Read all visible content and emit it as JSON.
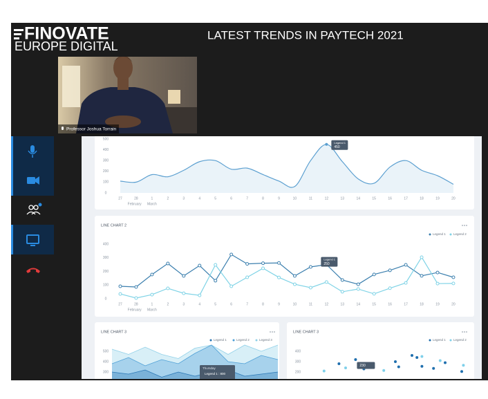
{
  "header": {
    "logo_line1": "FINOVATE",
    "logo_line2": "EUROPE DIGITAL",
    "title": "LATEST TRENDS IN PAYTECH 2021"
  },
  "video": {
    "caption": "Professor Joshua Torrain"
  },
  "dashboard": {
    "days": [
      "27",
      "28",
      "1",
      "2",
      "3",
      "4",
      "5",
      "6",
      "7",
      "8",
      "9",
      "10",
      "11",
      "12",
      "13",
      "14",
      "15",
      "16",
      "17",
      "18",
      "19",
      "20"
    ],
    "months": [
      "February",
      "March"
    ],
    "chart1": {
      "type": "area",
      "color": "#5b9fd0",
      "ylim": [
        0,
        500
      ],
      "yticks": [
        0,
        100,
        200,
        300,
        400,
        500
      ],
      "values": [
        110,
        100,
        170,
        150,
        210,
        290,
        300,
        220,
        230,
        170,
        110,
        60,
        300,
        450,
        290,
        130,
        90,
        240,
        300,
        210,
        160,
        80
      ],
      "tooltip": {
        "label": "Legend 1",
        "value": 450
      }
    },
    "chart2": {
      "type": "line",
      "title": "LINE CHART 2",
      "ylim": [
        0,
        400
      ],
      "yticks": [
        0,
        100,
        200,
        300,
        400
      ],
      "series": [
        {
          "name": "Legend 1",
          "color": "#3b7fae",
          "values": [
            91,
            86,
            177,
            258,
            167,
            243,
            132,
            324,
            255,
            260,
            262,
            167,
            233,
            250,
            137,
            106,
            178,
            208,
            248,
            168,
            192,
            157
          ]
        },
        {
          "name": "Legend 2",
          "color": "#7fd3e6",
          "values": [
            35,
            5,
            30,
            76,
            40,
            25,
            248,
            91,
            157,
            223,
            156,
            106,
            81,
            122,
            51,
            71,
            36,
            77,
            116,
            304,
            111,
            112
          ]
        }
      ],
      "tooltip": {
        "label": "Legend 1",
        "value": 250
      }
    },
    "chart3": {
      "type": "area",
      "title": "LINE CHART 3",
      "ylim": [
        300,
        500
      ],
      "yticks": [
        300,
        400,
        500
      ],
      "series": [
        {
          "name": "Legend 1",
          "color": "#2a77b5",
          "values": [
            300,
            280,
            320,
            250,
            300,
            260,
            300,
            320,
            260,
            280,
            300
          ]
        },
        {
          "name": "Legend 2",
          "color": "#4d9fd6",
          "values": [
            380,
            440,
            360,
            420,
            380,
            480,
            560,
            400,
            380,
            460,
            420
          ]
        },
        {
          "name": "Legend 3",
          "color": "#8fd0e8",
          "values": [
            520,
            470,
            540,
            470,
            430,
            530,
            560,
            470,
            560,
            500,
            560
          ]
        }
      ],
      "tooltip": {
        "title": "Thursday",
        "label": "Legend 1 : 800"
      }
    },
    "chart4": {
      "type": "scatter",
      "title": "LINE CHART 3",
      "xlim": [
        0,
        100
      ],
      "ylim": [
        200,
        400
      ],
      "yticks": [
        200,
        300,
        400
      ],
      "series": [
        {
          "name": "Legend 1",
          "color": "#1f6fae",
          "x": [
            21,
            31,
            36,
            55,
            57,
            65,
            68,
            78,
            85,
            95,
            71
          ],
          "values": [
            280,
            320,
            230,
            300,
            250,
            360,
            340,
            235,
            290,
            205,
            255
          ]
        },
        {
          "name": "Legend 2",
          "color": "#7fd0ea",
          "x": [
            12,
            25,
            48,
            71,
            82,
            96
          ],
          "values": [
            210,
            240,
            215,
            350,
            310,
            265
          ]
        }
      ],
      "tooltip": {
        "value": 230
      }
    }
  }
}
